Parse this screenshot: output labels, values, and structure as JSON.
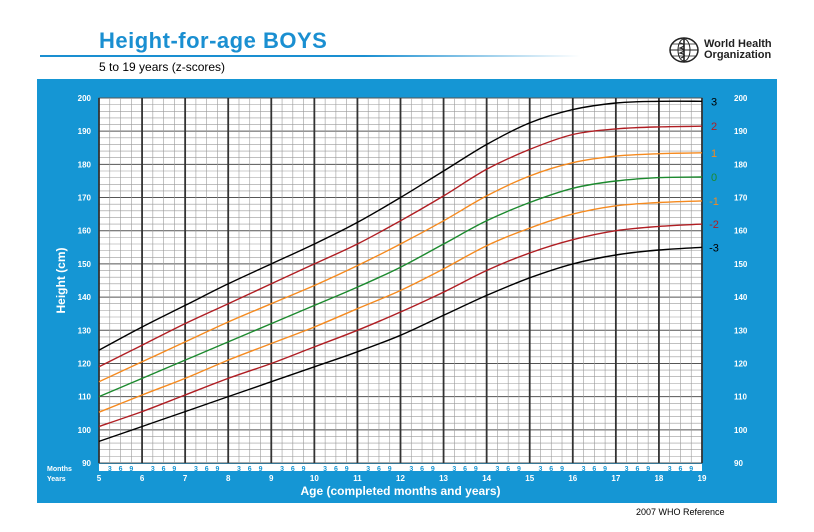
{
  "header": {
    "title": "Height-for-age  BOYS",
    "subtitle": "5 to 19 years (z-scores)",
    "logo_line1": "World Health",
    "logo_line2": "Organization",
    "logo_icon": "who-emblem-icon"
  },
  "footer": {
    "reference": "2007 WHO Reference"
  },
  "colors": {
    "panel": "#1596d4",
    "title": "#1a8fd1",
    "z3": "#000000",
    "z2": "#b01e23",
    "z1": "#f58a1f",
    "z0": "#1c8a2e"
  },
  "chart_data": {
    "type": "line",
    "title": "Height-for-age  BOYS",
    "subtitle": "5 to 19 years (z-scores)",
    "xlabel": "Age (completed months and years)",
    "ylabel": "Height (cm)",
    "xlim": [
      5,
      19
    ],
    "ylim": [
      90,
      200
    ],
    "y_ticks": [
      90,
      100,
      110,
      120,
      130,
      140,
      150,
      160,
      170,
      180,
      190,
      200
    ],
    "x_year_ticks": [
      5,
      6,
      7,
      8,
      9,
      10,
      11,
      12,
      13,
      14,
      15,
      16,
      17,
      18,
      19
    ],
    "month_ticks": [
      "3",
      "6",
      "9"
    ],
    "months_label": "Months",
    "years_label": "Years",
    "grid": true,
    "x": [
      5,
      6,
      7,
      8,
      9,
      10,
      11,
      12,
      13,
      14,
      15,
      16,
      17,
      18,
      19
    ],
    "series": [
      {
        "name": "3",
        "color": "#000000",
        "values": [
          124,
          131,
          137.5,
          144,
          150,
          156,
          162.5,
          170,
          178,
          186,
          192.5,
          196.5,
          198.5,
          199,
          199
        ]
      },
      {
        "name": "2",
        "color": "#b01e23",
        "values": [
          119,
          125.5,
          132,
          138,
          144,
          150,
          156,
          163,
          170.5,
          178.5,
          184.5,
          189,
          190.7,
          191.3,
          191.5
        ]
      },
      {
        "name": "1",
        "color": "#f58a1f",
        "values": [
          114.5,
          120.5,
          126.5,
          132.5,
          138,
          143.5,
          149.5,
          156,
          163,
          170.5,
          176.5,
          180.5,
          182.5,
          183.2,
          183.5
        ]
      },
      {
        "name": "0",
        "color": "#1c8a2e",
        "values": [
          110,
          115.5,
          121,
          126.5,
          132,
          137.5,
          143,
          149,
          156,
          163,
          168.5,
          172.8,
          175,
          176,
          176.2
        ]
      },
      {
        "name": "-1",
        "color": "#f58a1f",
        "values": [
          105.3,
          110.5,
          115.5,
          121,
          126,
          131,
          136.5,
          142,
          148.5,
          155.5,
          160.8,
          165,
          167.5,
          168.5,
          169
        ]
      },
      {
        "name": "-2",
        "color": "#b01e23",
        "values": [
          101,
          105.5,
          110.5,
          115.5,
          120,
          125,
          130,
          135.5,
          141.5,
          148,
          153.3,
          157.3,
          160,
          161.3,
          162
        ]
      },
      {
        "name": "-3",
        "color": "#000000",
        "values": [
          96.5,
          101,
          105.5,
          110,
          114.5,
          119,
          123.5,
          128.5,
          134.5,
          140.5,
          145.8,
          150,
          152.7,
          154.2,
          155
        ]
      }
    ]
  }
}
